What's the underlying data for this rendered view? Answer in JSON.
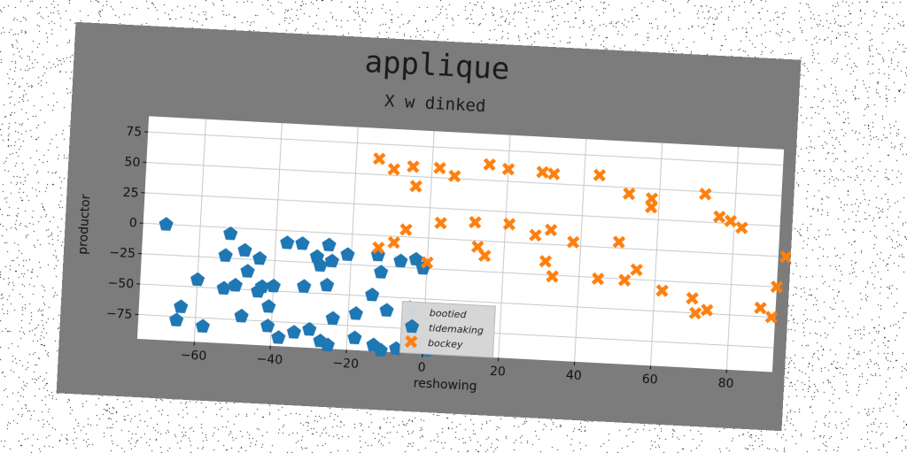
{
  "colors": {
    "figure_bg": "#7c7c7c",
    "tidemaking": "#1f77b4",
    "bockey": "#ff7f0e"
  },
  "chart_data": {
    "type": "scatter",
    "title": "applique",
    "subtitle": "X w dinked",
    "xlabel": "reshowing",
    "ylabel": "productor",
    "xlim": [
      -75,
      92
    ],
    "ylim": [
      -95,
      88
    ],
    "xticks": [
      -60,
      -40,
      -20,
      0,
      20,
      40,
      60,
      80
    ],
    "yticks": [
      75,
      50,
      25,
      0,
      -25,
      -50,
      -75
    ],
    "grid": true,
    "legend_position": "lower-center",
    "legend": [
      "bootied",
      "tidemaking",
      "bockey"
    ],
    "series": [
      {
        "name": "bootied",
        "marker": "none",
        "points": []
      },
      {
        "name": "tidemaking",
        "marker": "pentagon",
        "points": [
          [
            -69,
            0
          ],
          [
            -52,
            -5
          ],
          [
            -53,
            -23
          ],
          [
            -48,
            -18
          ],
          [
            -44,
            -24
          ],
          [
            -33,
            -10
          ],
          [
            -26,
            -10
          ],
          [
            -29,
            -20
          ],
          [
            -28,
            -27
          ],
          [
            -25,
            -23
          ],
          [
            -21,
            -17
          ],
          [
            -37,
            -10
          ],
          [
            -13,
            -16
          ],
          [
            -12,
            -30
          ],
          [
            -7,
            -20
          ],
          [
            -3,
            -18
          ],
          [
            -1,
            -25
          ],
          [
            -60,
            -44
          ],
          [
            -53,
            -50
          ],
          [
            -50,
            -47
          ],
          [
            -47,
            -35
          ],
          [
            -43,
            -47
          ],
          [
            -40,
            -46
          ],
          [
            -44,
            -51
          ],
          [
            -32,
            -45
          ],
          [
            -26,
            -43
          ],
          [
            -14,
            -49
          ],
          [
            -41,
            -63
          ],
          [
            -48,
            -72
          ],
          [
            -41,
            -79
          ],
          [
            -24,
            -70
          ],
          [
            -18,
            -65
          ],
          [
            -10,
            -61
          ],
          [
            -4,
            -58
          ],
          [
            -64,
            -67
          ],
          [
            -65,
            -78
          ],
          [
            -58,
            -82
          ],
          [
            -34,
            -83
          ],
          [
            -30,
            -80
          ],
          [
            -38,
            -88
          ],
          [
            -27,
            -89
          ],
          [
            -25,
            -92
          ],
          [
            -18,
            -85
          ],
          [
            -13,
            -90
          ],
          [
            -7,
            -92
          ],
          [
            -2,
            -85
          ],
          [
            -11,
            -94
          ],
          [
            1,
            -92
          ],
          [
            -2,
            -64
          ]
        ]
      },
      {
        "name": "bockey",
        "marker": "x",
        "points": [
          [
            -14,
            63
          ],
          [
            -10,
            55
          ],
          [
            -5,
            58
          ],
          [
            -4,
            42
          ],
          [
            2,
            58
          ],
          [
            6,
            52
          ],
          [
            15,
            63
          ],
          [
            20,
            60
          ],
          [
            29,
            59
          ],
          [
            32,
            58
          ],
          [
            44,
            59
          ],
          [
            52,
            45
          ],
          [
            58,
            42
          ],
          [
            58,
            35
          ],
          [
            72,
            48
          ],
          [
            76,
            30
          ],
          [
            79,
            27
          ],
          [
            82,
            22
          ],
          [
            3,
            13
          ],
          [
            12,
            15
          ],
          [
            21,
            15
          ],
          [
            28,
            7
          ],
          [
            32,
            12
          ],
          [
            38,
            3
          ],
          [
            50,
            5
          ],
          [
            94,
            0
          ],
          [
            -13,
            -10
          ],
          [
            -9,
            -5
          ],
          [
            -6,
            6
          ],
          [
            0,
            -20
          ],
          [
            13,
            -5
          ],
          [
            15,
            -12
          ],
          [
            31,
            -14
          ],
          [
            33,
            -26
          ],
          [
            45,
            -26
          ],
          [
            55,
            -17
          ],
          [
            52,
            -26
          ],
          [
            62,
            -33
          ],
          [
            70,
            -38
          ],
          [
            71,
            -50
          ],
          [
            74,
            -47
          ],
          [
            88,
            -43
          ],
          [
            91,
            -50
          ],
          [
            92,
            -25
          ]
        ]
      }
    ]
  }
}
